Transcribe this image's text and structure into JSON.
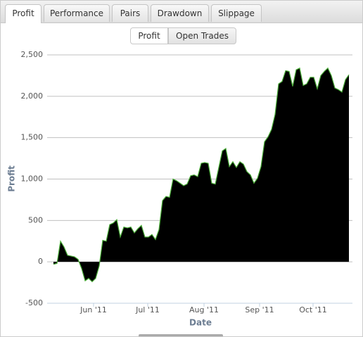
{
  "tabs": [
    "Profit",
    "Performance",
    "Pairs",
    "Drawdown",
    "Slippage"
  ],
  "buttons": [
    "Profit",
    "Open Trades"
  ],
  "chart_data": {
    "type": "area",
    "ylabel": "Profit",
    "xlabel": "Date",
    "color": "#000000",
    "line_color": "#4caf3a",
    "values": [
      -30,
      -20,
      250,
      180,
      80,
      70,
      60,
      30,
      -80,
      -230,
      -200,
      -240,
      -200,
      -50,
      260,
      250,
      450,
      470,
      510,
      300,
      420,
      410,
      420,
      350,
      400,
      440,
      300,
      300,
      330,
      270,
      390,
      740,
      790,
      780,
      1000,
      980,
      950,
      920,
      940,
      1040,
      1050,
      1030,
      1190,
      1200,
      1190,
      950,
      940,
      1140,
      1340,
      1370,
      1150,
      1210,
      1140,
      1210,
      1180,
      1090,
      1050,
      950,
      1010,
      1150,
      1450,
      1510,
      1600,
      1780,
      2150,
      2180,
      2310,
      2300,
      2120,
      2320,
      2340,
      2130,
      2150,
      2230,
      2230,
      2090,
      2250,
      2300,
      2340,
      2250,
      2100,
      2080,
      2050,
      2200,
      2260
    ],
    "xlim": [
      0,
      84
    ],
    "xticks": [
      {
        "value": 11.4,
        "label": "Jun '11"
      },
      {
        "value": 26.8,
        "label": "Jul '11"
      },
      {
        "value": 42.8,
        "label": "Aug '11"
      },
      {
        "value": 58.6,
        "label": "Sep '11"
      },
      {
        "value": 73.8,
        "label": "Oct '11"
      }
    ],
    "ylim": [
      -500,
      2500
    ],
    "yticks": [
      -500,
      0,
      500,
      {
        "value": 1000,
        "label": "1,000"
      },
      {
        "value": 1500,
        "label": "1,500"
      },
      {
        "value": 2000,
        "label": "2,000"
      },
      {
        "value": 2500,
        "label": "2,500"
      }
    ],
    "grid": true
  }
}
